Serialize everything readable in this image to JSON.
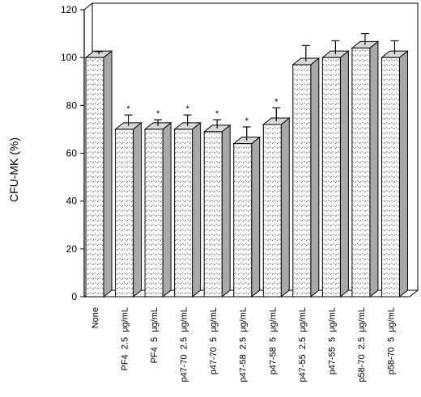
{
  "chart_data": {
    "type": "bar3d",
    "y_label": "CFU-MK (%)",
    "categories": [
      "None",
      "PF4  2.5  μg/mL",
      "PF4  5  μg/mL",
      "p47-70  2.5  μg/mL",
      "p47-70  5  μg/mL",
      "p47-58  2.5  μg/mL",
      "p47-58  5  μg/mL",
      "p47-55  2.5  μg/mL",
      "p47-55  5  μg/mL",
      "p58-70  2.5  μg/mL",
      "p58-70  5  μg/mL"
    ],
    "values": [
      100,
      70,
      70,
      70,
      69,
      64,
      72,
      97,
      100,
      104,
      100
    ],
    "errors": [
      2.5,
      6,
      4,
      6,
      5,
      7,
      7,
      8,
      7,
      6,
      7
    ],
    "markers": [
      null,
      "*",
      "*",
      "*",
      "*",
      "*",
      "*",
      null,
      null,
      null,
      null
    ],
    "color": "#d8d8d8",
    "ylim": [
      0,
      120
    ],
    "yticks": [
      0,
      20,
      40,
      60,
      80,
      100,
      120
    ]
  }
}
